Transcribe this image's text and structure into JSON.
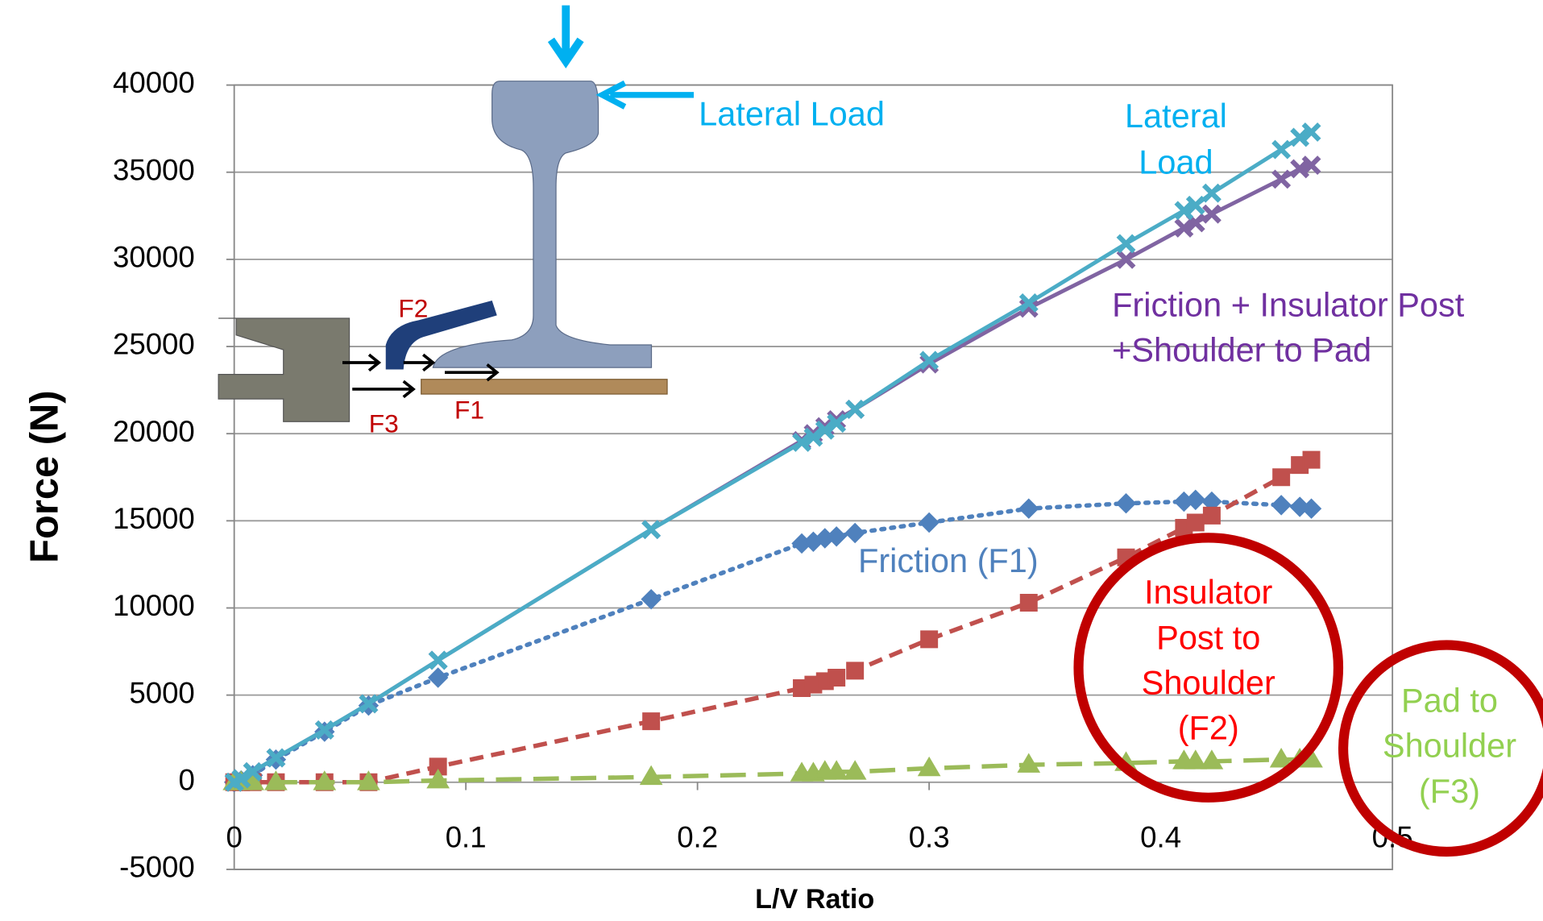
{
  "chart_data": {
    "type": "line",
    "x_label": "L/V Ratio",
    "y_label": "Force (N)",
    "x": [
      0,
      0.003,
      0.008,
      0.018,
      0.039,
      0.058,
      0.088,
      0.18,
      0.245,
      0.25,
      0.255,
      0.26,
      0.268,
      0.3,
      0.343,
      0.385,
      0.41,
      0.415,
      0.422,
      0.452,
      0.46,
      0.465
    ],
    "series": [
      {
        "color": "#4f81bd",
        "dash": "dotted",
        "marker": "diamond",
        "values": [
          0,
          100,
          400,
          1300,
          2900,
          4400,
          6000,
          10500,
          13700,
          13800,
          14000,
          14100,
          14300,
          14900,
          15700,
          16000,
          16100,
          16200,
          16100,
          15900,
          15800,
          15700
        ]
      },
      {
        "color": "#c0504d",
        "dash": "dashed",
        "marker": "square",
        "values": [
          0,
          0,
          0,
          0,
          0,
          0,
          900,
          3500,
          5400,
          5600,
          5800,
          6000,
          6400,
          8200,
          10300,
          12900,
          14600,
          14900,
          15300,
          17500,
          18200,
          18500
        ]
      },
      {
        "color": "#9bbb59",
        "dash": "longdash",
        "marker": "triangle",
        "values": [
          0,
          0,
          0,
          0,
          0,
          0,
          100,
          300,
          500,
          500,
          600,
          600,
          600,
          800,
          1000,
          1100,
          1200,
          1200,
          1200,
          1300,
          1300,
          1300
        ]
      },
      {
        "color": "#8064a2",
        "dash": "solid",
        "marker": "x",
        "values": [
          0,
          200,
          600,
          1400,
          3000,
          4500,
          7000,
          14500,
          19600,
          20000,
          20400,
          20800,
          21400,
          24000,
          27200,
          30000,
          31800,
          32100,
          32600,
          34600,
          35200,
          35400
        ]
      },
      {
        "color": "#4bacc6",
        "dash": "solid",
        "marker": "x",
        "values": [
          0,
          200,
          600,
          1400,
          3000,
          4500,
          7000,
          14500,
          19500,
          19800,
          20200,
          20600,
          21400,
          24200,
          27500,
          30900,
          32800,
          33100,
          33800,
          36300,
          37000,
          37300
        ]
      }
    ],
    "xlim": [
      0,
      0.5
    ],
    "xticks": [
      0,
      0.1,
      0.2,
      0.3,
      0.4,
      0.5
    ],
    "ylim": [
      -5000,
      40000
    ],
    "yticks": [
      -5000,
      0,
      5000,
      10000,
      15000,
      20000,
      25000,
      30000,
      35000,
      40000
    ],
    "grid": true,
    "annotations": {
      "inset_lateral_load": "Lateral Load",
      "lateral_load": [
        "Lateral",
        "Load"
      ],
      "total": [
        "Friction + Insulator Post",
        "+Shoulder to Pad"
      ],
      "friction": "Friction (F1)",
      "f2": [
        "Insulator",
        "Post to",
        "Shoulder",
        "(F2)"
      ],
      "f3": [
        "Pad to",
        "Shoulder",
        "(F3)"
      ],
      "inset_forces": [
        "F1",
        "F2",
        "F3"
      ]
    }
  }
}
